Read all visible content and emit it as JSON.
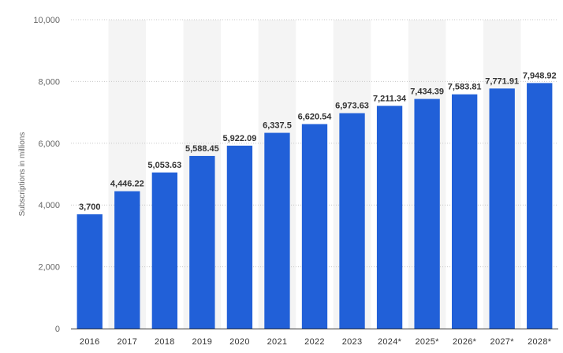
{
  "chart_data": {
    "type": "bar",
    "categories": [
      "2016",
      "2017",
      "2018",
      "2019",
      "2020",
      "2021",
      "2022",
      "2023",
      "2024*",
      "2025*",
      "2026*",
      "2027*",
      "2028*"
    ],
    "values": [
      3700,
      4446.22,
      5053.63,
      5588.45,
      5922.09,
      6337.5,
      6620.54,
      6973.63,
      7211.34,
      7434.39,
      7583.81,
      7771.91,
      7948.92
    ],
    "data_labels": [
      "3,700",
      "4,446.22",
      "5,053.63",
      "5,588.45",
      "5,922.09",
      "6,337.5",
      "6,620.54",
      "6,973.63",
      "7,211.34",
      "7,434.39",
      "7,583.81",
      "7,771.91",
      "7,948.92"
    ],
    "yticks": [
      0,
      2000,
      4000,
      6000,
      8000,
      10000
    ],
    "ytick_labels": [
      "0",
      "2,000",
      "4,000",
      "6,000",
      "8,000",
      "10,000"
    ],
    "ylabel": "Subscriptions in millions",
    "xlabel": "",
    "ylim": [
      0,
      10000
    ],
    "grid": true,
    "bar_color": "#2160d8",
    "alternate_band_color": "#f4f4f4"
  }
}
